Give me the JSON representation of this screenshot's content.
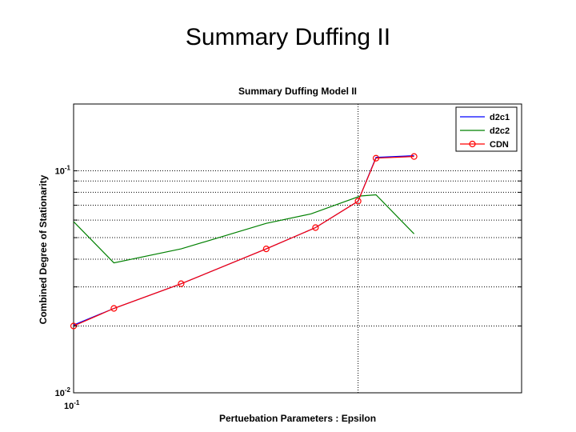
{
  "slide": {
    "title": "Summary Duffing II"
  },
  "chart_data": {
    "type": "line",
    "title": "Summary  Duffing Model II",
    "xlabel": "Pertuebation Parameters : Epsilon",
    "ylabel": "Combined Degree of Stationarity",
    "yscale": "log",
    "xlim": [
      0,
      1.0
    ],
    "ylim": [
      0.01,
      0.2
    ],
    "y_ticks": [
      {
        "value": 0.1,
        "base": "10",
        "exp": "-1"
      },
      {
        "value": 0.01,
        "base": "10",
        "exp": "-2"
      }
    ],
    "x_ticks": [
      {
        "value": 0,
        "base": "10",
        "exp": "-1"
      }
    ],
    "x_vline": 0.635,
    "grid": "y-minor-dotted",
    "legend_position": "top-right",
    "series": [
      {
        "name": "d2c1",
        "color": "#0000ff",
        "marker": "none",
        "x": [
          0.0,
          0.09,
          0.24,
          0.43,
          0.54,
          0.635,
          0.675,
          0.76
        ],
        "y": [
          0.0202,
          0.024,
          0.031,
          0.0445,
          0.0555,
          0.073,
          0.115,
          0.117
        ]
      },
      {
        "name": "d2c2",
        "color": "#008000",
        "marker": "none",
        "x": [
          0.0,
          0.09,
          0.24,
          0.43,
          0.53,
          0.64,
          0.675,
          0.76
        ],
        "y": [
          0.059,
          0.0385,
          0.0445,
          0.058,
          0.064,
          0.077,
          0.078,
          0.052
        ]
      },
      {
        "name": "CDN",
        "color": "#ff0000",
        "marker": "circle",
        "x": [
          0.0,
          0.09,
          0.24,
          0.43,
          0.54,
          0.635,
          0.675,
          0.76
        ],
        "y": [
          0.02,
          0.024,
          0.031,
          0.0445,
          0.0555,
          0.073,
          0.114,
          0.116
        ]
      }
    ]
  }
}
